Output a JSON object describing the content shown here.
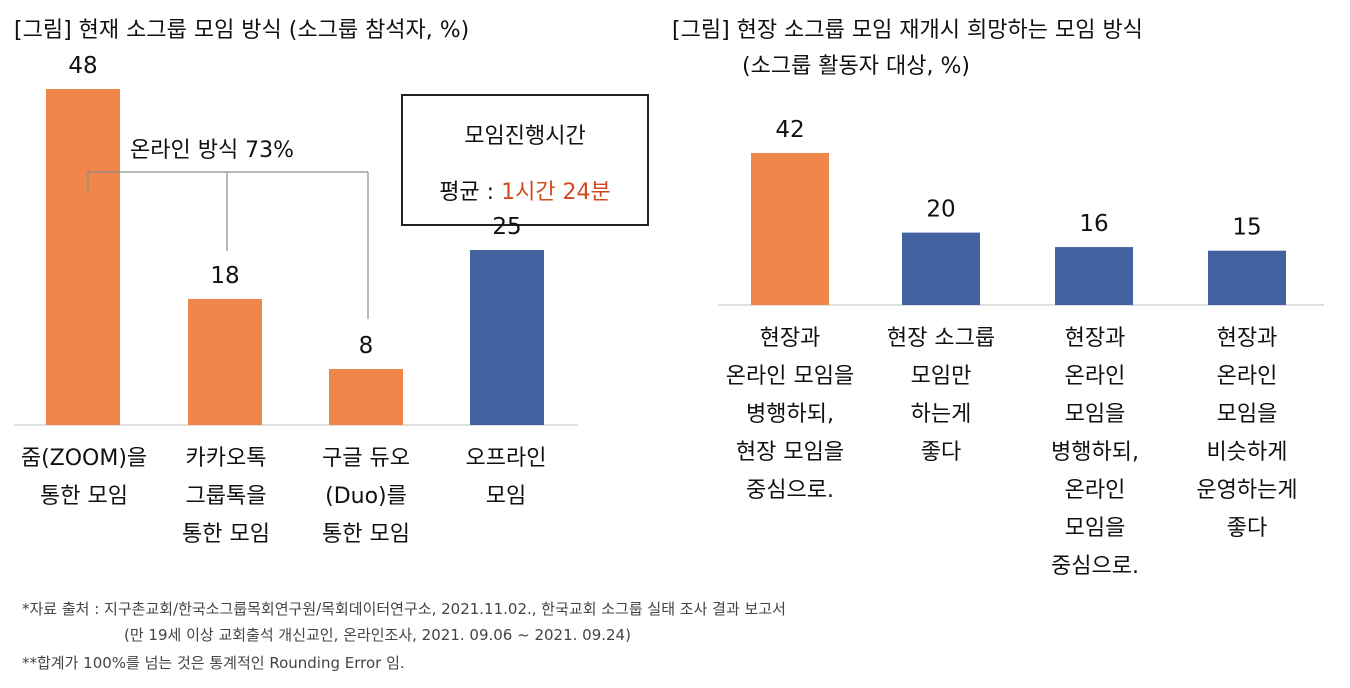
{
  "colors": {
    "orange": "#F0864A",
    "blue": "#41629F",
    "highlight": "#D14A1E",
    "bracket": "#8C8C8C"
  },
  "chart_data": [
    {
      "type": "bar",
      "title": "[그림] 현재 소그룹 모임 방식 (소그룹 참석자, %)",
      "categories": [
        "줌(ZOOM)을\n통한 모임",
        "카카오톡\n그룹톡을\n통한 모임",
        "구글 듀오\n(Duo)를\n통한 모임",
        "오프라인\n모임"
      ],
      "values": [
        48,
        18,
        8,
        25
      ],
      "bar_colors": [
        "#F0864A",
        "#F0864A",
        "#F0864A",
        "#41629F"
      ],
      "ylim": [
        0,
        50
      ],
      "xlabel": "",
      "ylabel": "",
      "annotations": {
        "bracket_label": "온라인 방식 73%",
        "box_title": "모임진행시간",
        "box_avg_label": "평균 : ",
        "box_avg_value": "1시간 24분"
      }
    },
    {
      "type": "bar",
      "title": "[그림] 현장 소그룹 모임 재개시 희망하는 모임 방식",
      "subtitle": "(소그룹 활동자 대상, %)",
      "categories": [
        "현장과\n온라인 모임을\n병행하되,\n현장 모임을\n중심으로.",
        "현장 소그룹\n모임만\n하는게\n좋다",
        "현장과\n온라인\n모임을\n병행하되,\n온라인\n모임을\n중심으로.",
        "현장과\n온라인\n모임을\n비슷하게\n운영하는게\n좋다"
      ],
      "values": [
        42,
        20,
        16,
        15
      ],
      "bar_colors": [
        "#F0864A",
        "#41629F",
        "#41629F",
        "#41629F"
      ],
      "ylim": [
        0,
        50
      ],
      "xlabel": "",
      "ylabel": ""
    }
  ],
  "footnotes": [
    "*자료 출처 : 지구촌교회/한국소그룹목회연구원/목회데이터연구소, 2021.11.02., 한국교회 소그룹 실태 조사 결과 보고서",
    "(만 19세 이상 교회출석 개신교인, 온라인조사, 2021. 09.06 ~ 2021. 09.24)",
    "**합계가 100%를 넘는 것은 통계적인 Rounding Error 임."
  ]
}
